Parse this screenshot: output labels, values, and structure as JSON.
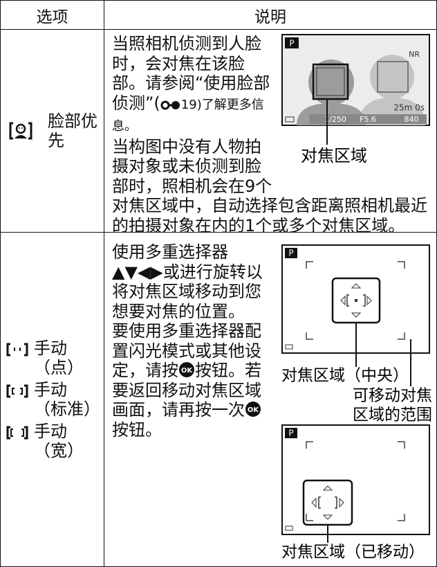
{
  "table": {
    "headers": [
      "选项",
      "说明"
    ],
    "ok_button": "OK",
    "rows": [
      {
        "options": [
          {
            "label": [
              "脸部优先"
            ]
          }
        ],
        "paragraphs": [
          [
            "当照相机侦测到人脸时，会对焦在该脸部。请参阅“使用脸部侦测”(",
            "19)了解更多信息。"
          ],
          [
            "当构图中没有人物拍摄对象或未侦测到脸部时，照相机会在9个对焦区域中，自动选择包含距离照相机最近的拍摄对象在内的1个或多个对焦区域。"
          ]
        ],
        "figures": [
          {
            "screen": {
              "mode": "P",
              "nr": "NR",
              "remaining": "25m 0s",
              "shutter": "1/250",
              "aperture": "F5.6",
              "shots": "840"
            },
            "captions": [
              "对焦区域"
            ]
          }
        ]
      },
      {
        "options": [
          {
            "label": [
              "手动",
              "（点）"
            ]
          },
          {
            "label": [
              "手动",
              "（标准）"
            ]
          },
          {
            "label": [
              "手动",
              "（宽）"
            ]
          }
        ],
        "paragraphs": [
          [
            "使用多重选择器",
            "▲▼◀▶",
            "或进行旋转以将对焦区域移动到您想要对焦的位置。"
          ],
          [
            "要使用多重选择器配置闪光模式或其他设定，请按",
            "按钮。若要返回移动对焦区域画面，请再按一次",
            "按钮。"
          ]
        ],
        "figures": [
          {
            "screen": {
              "mode": "P"
            },
            "captions": [
              "对焦区域（中央）",
              "可移动对焦",
              "区域的范围"
            ]
          },
          {
            "screen": {
              "mode": "P"
            },
            "captions": [
              "对焦区域（已移动）"
            ]
          }
        ]
      }
    ]
  }
}
